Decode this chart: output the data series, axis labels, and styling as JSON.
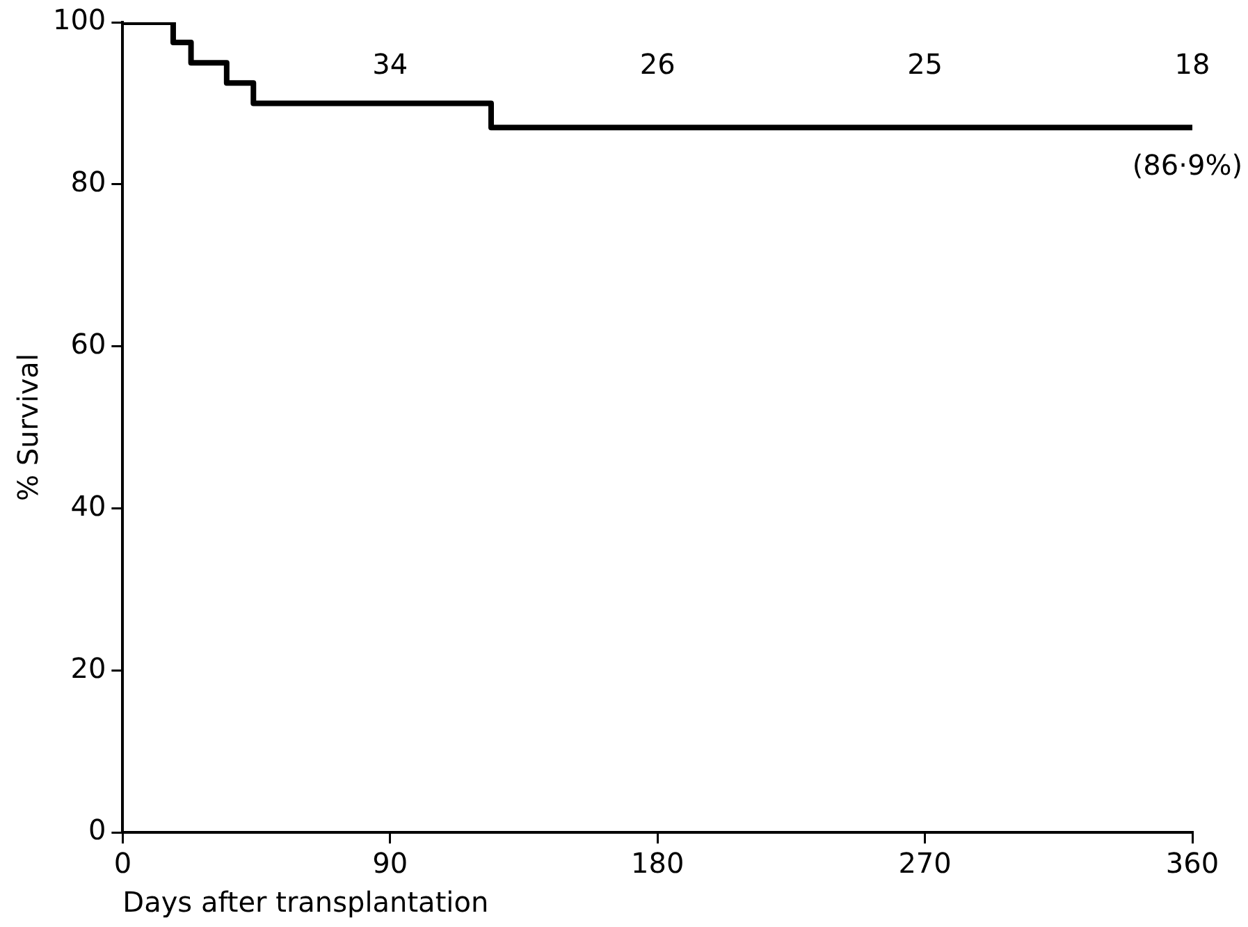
{
  "chart_data": {
    "type": "step",
    "x": [
      0,
      17,
      23,
      35,
      44,
      124,
      360
    ],
    "series": [
      {
        "color": "#000000",
        "values": [
          100,
          97.5,
          95,
          92.5,
          90,
          87,
          86.9
        ]
      }
    ],
    "xlabel": "Days after transplantation",
    "ylabel": "% Survival",
    "xlim": [
      0,
      360
    ],
    "xticks": [
      0,
      90,
      180,
      270,
      360
    ],
    "ylim": [
      0,
      100
    ],
    "yticks": [
      0,
      20,
      40,
      60,
      80,
      100
    ],
    "grid": false,
    "legend": false,
    "marker": "none",
    "line_style": "solid",
    "annotations": [
      "34",
      "26",
      "25",
      "18",
      {
        "text": "(86·9%)",
        "x": 360,
        "y": 86.9
      }
    ]
  }
}
